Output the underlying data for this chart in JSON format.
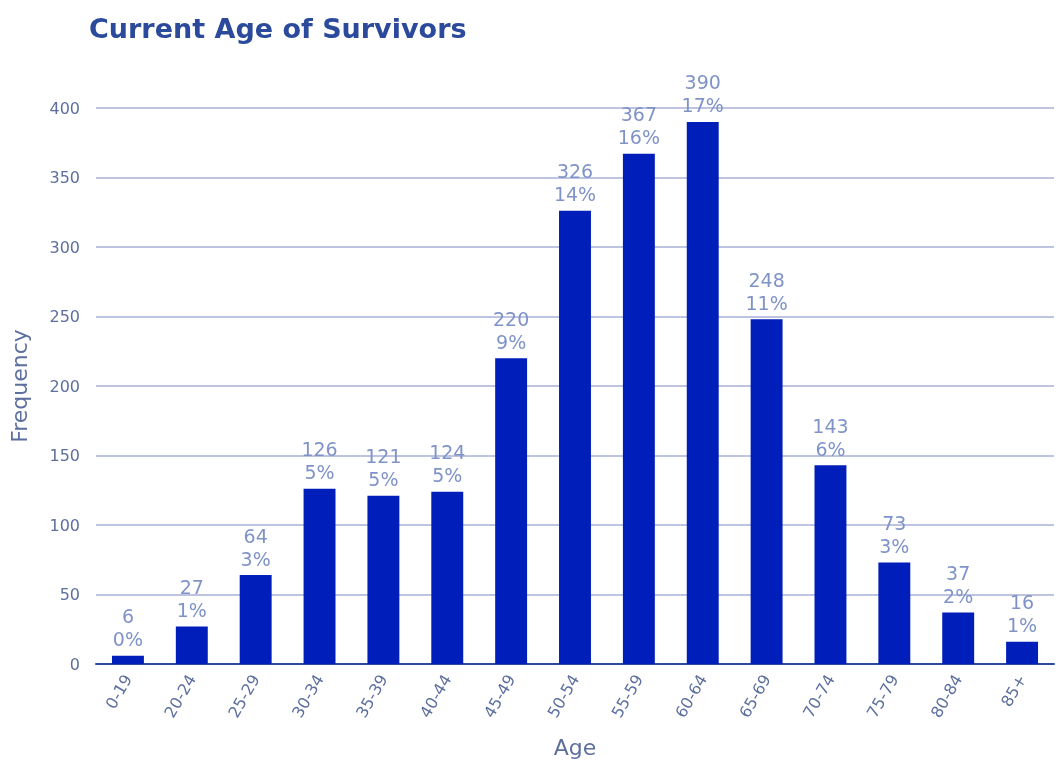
{
  "chart_data": {
    "type": "bar",
    "title": "Current Age of Survivors",
    "xlabel": "Age",
    "ylabel": "Frequency",
    "categories": [
      "0-19",
      "20-24",
      "25-29",
      "30-34",
      "35-39",
      "40-44",
      "45-49",
      "50-54",
      "55-59",
      "60-64",
      "65-69",
      "70-74",
      "75-79",
      "80-84",
      "85+"
    ],
    "values": [
      6,
      27,
      64,
      126,
      121,
      124,
      220,
      326,
      367,
      390,
      248,
      143,
      73,
      37,
      16
    ],
    "value_labels": [
      "6\n0%",
      "27\n1%",
      "64\n3%",
      "126\n5%",
      "121\n5%",
      "124\n5%",
      "220\n9%",
      "326\n14%",
      "367\n16%",
      "390\n17%",
      "248\n11%",
      "143\n6%",
      "73\n3%",
      "37\n2%",
      "16\n1%"
    ],
    "color": "#001eb9",
    "ylim": [
      0,
      400
    ],
    "yticks": [
      0,
      50,
      100,
      150,
      200,
      250,
      300,
      350,
      400
    ],
    "grid": "y"
  }
}
